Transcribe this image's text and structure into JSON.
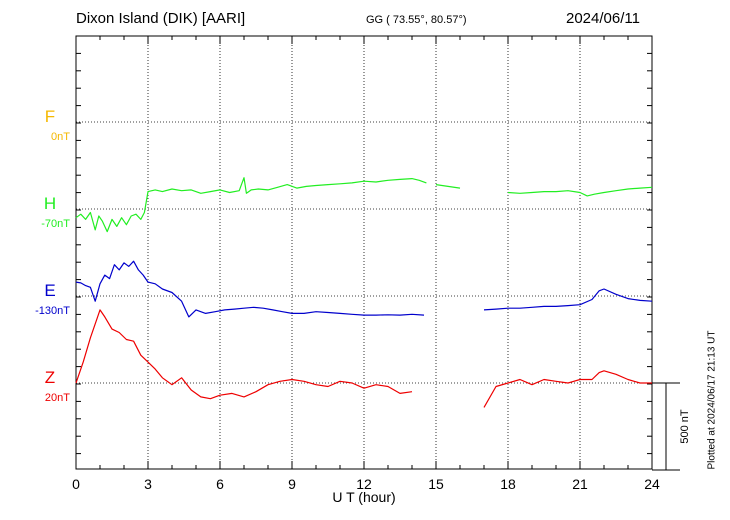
{
  "header": {
    "station": "Dixon Island (DIK)  [AARI]",
    "coords": "GG ( 73.55°,  80.57°)",
    "date": "2024/06/11"
  },
  "plotted_note": "Plotted at 2024/06/17 21:13 UT",
  "chart_data": {
    "type": "line",
    "xlabel": "U T (hour)",
    "xlim": [
      0,
      24
    ],
    "x_ticks": [
      0,
      3,
      6,
      9,
      12,
      15,
      18,
      21,
      24
    ],
    "grid": true,
    "scale_bar": {
      "label": "500 nT",
      "value_nT": 500
    },
    "channels": [
      {
        "key": "F",
        "name": "F",
        "baseline": "0nT",
        "color": "#f5b800",
        "values": []
      },
      {
        "key": "H",
        "name": "H",
        "baseline": "-70nT",
        "color": "#22ee22",
        "x": [
          0,
          0.2,
          0.4,
          0.6,
          0.8,
          0.95,
          1.1,
          1.3,
          1.5,
          1.7,
          1.9,
          2.1,
          2.3,
          2.5,
          2.7,
          2.85,
          3.0,
          3.3,
          3.6,
          4.0,
          4.4,
          4.8,
          5.2,
          5.6,
          6.0,
          6.4,
          6.8,
          7.0,
          7.1,
          7.2,
          7.3,
          7.6,
          8.0,
          8.4,
          8.8,
          9.2,
          9.6,
          10.0,
          10.5,
          11.0,
          11.5,
          12.0,
          12.5,
          13.0,
          13.5,
          14.0,
          14.3,
          14.6,
          15.0,
          15.5,
          16.0,
          16.5,
          17.0,
          17.5,
          18.0,
          18.5,
          19.0,
          19.5,
          20.0,
          20.5,
          21.0,
          21.3,
          21.6,
          22.0,
          22.5,
          23.0,
          23.5,
          24.0
        ],
        "y": [
          -50,
          -30,
          -60,
          -20,
          -120,
          -40,
          -70,
          -130,
          -60,
          -100,
          -50,
          -90,
          -40,
          -30,
          -60,
          -20,
          100,
          110,
          100,
          115,
          105,
          110,
          90,
          100,
          110,
          95,
          105,
          180,
          90,
          100,
          110,
          115,
          110,
          125,
          140,
          120,
          130,
          135,
          140,
          145,
          150,
          160,
          155,
          165,
          170,
          175,
          165,
          150,
          140,
          130,
          120,
          105,
          100,
          100,
          95,
          90,
          95,
          100,
          100,
          105,
          95,
          75,
          85,
          95,
          105,
          115,
          120,
          125
        ],
        "gaps": [
          [
            14.7,
            15.0
          ],
          [
            16.2,
            16.5
          ],
          [
            16.8,
            17.1
          ],
          [
            17.5,
            17.7
          ]
        ]
      },
      {
        "key": "E",
        "name": "E",
        "baseline": "-130nT",
        "color": "#0000cc",
        "x": [
          0,
          0.2,
          0.4,
          0.6,
          0.8,
          1.0,
          1.2,
          1.4,
          1.6,
          1.8,
          2.0,
          2.2,
          2.4,
          2.6,
          2.8,
          3.0,
          3.3,
          3.6,
          4.0,
          4.4,
          4.7,
          5.0,
          5.4,
          5.8,
          6.2,
          6.6,
          7.0,
          7.4,
          7.8,
          8.2,
          8.6,
          9.0,
          9.5,
          10.0,
          10.5,
          11.0,
          11.5,
          12.0,
          12.5,
          13.0,
          13.5,
          14.0,
          14.5,
          15.0,
          15.5,
          16.0,
          16.5,
          17.0,
          17.5,
          18.0,
          18.5,
          19.0,
          19.5,
          20.0,
          20.5,
          21.0,
          21.5,
          21.8,
          22.0,
          22.5,
          23.0,
          23.5,
          24.0
        ],
        "y": [
          80,
          75,
          60,
          50,
          -30,
          70,
          120,
          100,
          180,
          150,
          190,
          170,
          200,
          150,
          120,
          80,
          70,
          40,
          20,
          -30,
          -120,
          -80,
          -100,
          -90,
          -80,
          -75,
          -70,
          -65,
          -70,
          -80,
          -90,
          -100,
          -100,
          -90,
          -95,
          -100,
          -105,
          -110,
          -110,
          -108,
          -110,
          -105,
          -110,
          -112,
          -105,
          -100,
          -90,
          -80,
          -75,
          -70,
          -70,
          -65,
          -60,
          -60,
          -55,
          -50,
          -20,
          30,
          40,
          10,
          -15,
          -25,
          -30
        ],
        "gaps": [
          [
            14.8,
            15.2
          ],
          [
            15.8,
            16.2
          ],
          [
            16.6,
            17.0
          ]
        ]
      },
      {
        "key": "Z",
        "name": "Z",
        "baseline": "20nT",
        "color": "#ee0000",
        "x": [
          0,
          0.3,
          0.6,
          0.9,
          1.0,
          1.2,
          1.5,
          1.8,
          2.1,
          2.4,
          2.7,
          3.0,
          3.3,
          3.6,
          4.0,
          4.4,
          4.8,
          5.2,
          5.6,
          6.0,
          6.5,
          7.0,
          7.5,
          8.0,
          8.5,
          9.0,
          9.5,
          10.0,
          10.5,
          11.0,
          11.5,
          12.0,
          12.5,
          13.0,
          13.5,
          14.0,
          14.5,
          15.0,
          15.5,
          16.0,
          16.5,
          17.0,
          17.5,
          18.0,
          18.5,
          19.0,
          19.5,
          20.0,
          20.5,
          21.0,
          21.5,
          21.8,
          22.0,
          22.5,
          23.0,
          23.5,
          24.0
        ],
        "y": [
          0,
          120,
          260,
          380,
          420,
          380,
          310,
          290,
          250,
          240,
          160,
          120,
          80,
          30,
          -10,
          30,
          -40,
          -80,
          -90,
          -70,
          -60,
          -80,
          -50,
          -10,
          10,
          20,
          10,
          -10,
          -20,
          10,
          0,
          -30,
          -10,
          -20,
          -60,
          -50,
          -90,
          -80,
          -70,
          -50,
          -70,
          -140,
          -20,
          0,
          20,
          -10,
          20,
          10,
          0,
          20,
          20,
          60,
          70,
          50,
          20,
          0,
          0
        ],
        "gaps": [
          [
            14.1,
            14.6
          ],
          [
            15.4,
            15.8
          ],
          [
            16.4,
            16.8
          ]
        ]
      }
    ]
  }
}
